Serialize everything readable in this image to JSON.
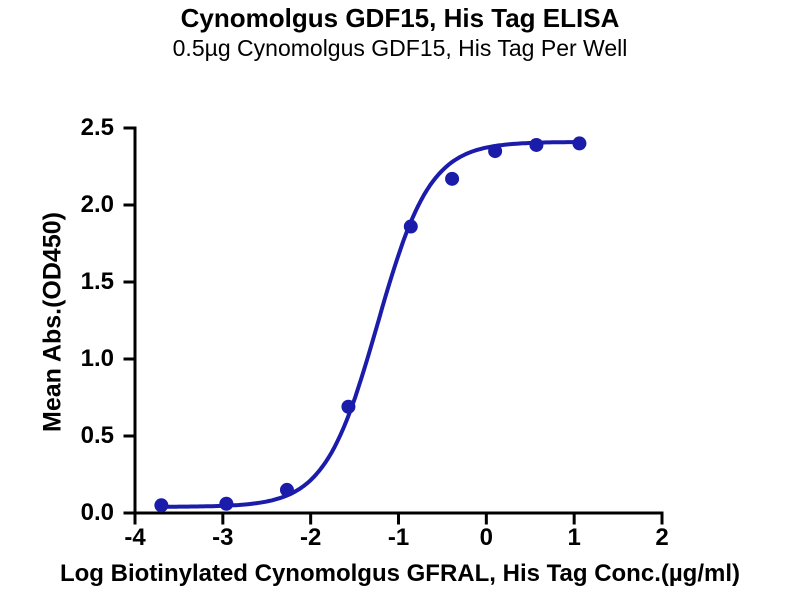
{
  "chart_data": {
    "type": "scatter",
    "title": "Cynomolgus GDF15, His Tag ELISA",
    "subtitle": "0.5µg Cynomolgus GDF15, His Tag Per Well",
    "xlabel": "Log Biotinylated Cynomolgus GFRAL, His Tag Conc.(µg/ml)",
    "ylabel": "Mean Abs.(OD450)",
    "xlim": [
      -4,
      2
    ],
    "ylim": [
      0,
      2.5
    ],
    "xticks": [
      -4,
      -3,
      -2,
      -1,
      0,
      1,
      2
    ],
    "xtick_labels": [
      "-4",
      "-3",
      "-2",
      "-1",
      "0",
      "1",
      "2"
    ],
    "yticks": [
      0,
      0.5,
      1.0,
      1.5,
      2.0,
      2.5
    ],
    "ytick_labels": [
      "0.0",
      "0.5",
      "1.0",
      "1.5",
      "2.0",
      "2.5"
    ],
    "grid": false,
    "legend": "none",
    "axis_color": "#000000",
    "series": [
      {
        "color": "#1c1caa",
        "marker": "circle",
        "marker_radius": 7,
        "line_width": 4,
        "points": [
          {
            "x": -3.7,
            "y": 0.05
          },
          {
            "x": -2.96,
            "y": 0.06
          },
          {
            "x": -2.27,
            "y": 0.15
          },
          {
            "x": -1.57,
            "y": 0.69
          },
          {
            "x": -0.86,
            "y": 1.86
          },
          {
            "x": -0.39,
            "y": 2.17
          },
          {
            "x": 0.1,
            "y": 2.35
          },
          {
            "x": 0.57,
            "y": 2.39
          },
          {
            "x": 1.06,
            "y": 2.4
          }
        ],
        "fit_curve": {
          "model": "4PL",
          "bottom": 0.04,
          "top": 2.41,
          "log_ec50": -1.24,
          "hill_slope": 1.45
        }
      }
    ]
  }
}
